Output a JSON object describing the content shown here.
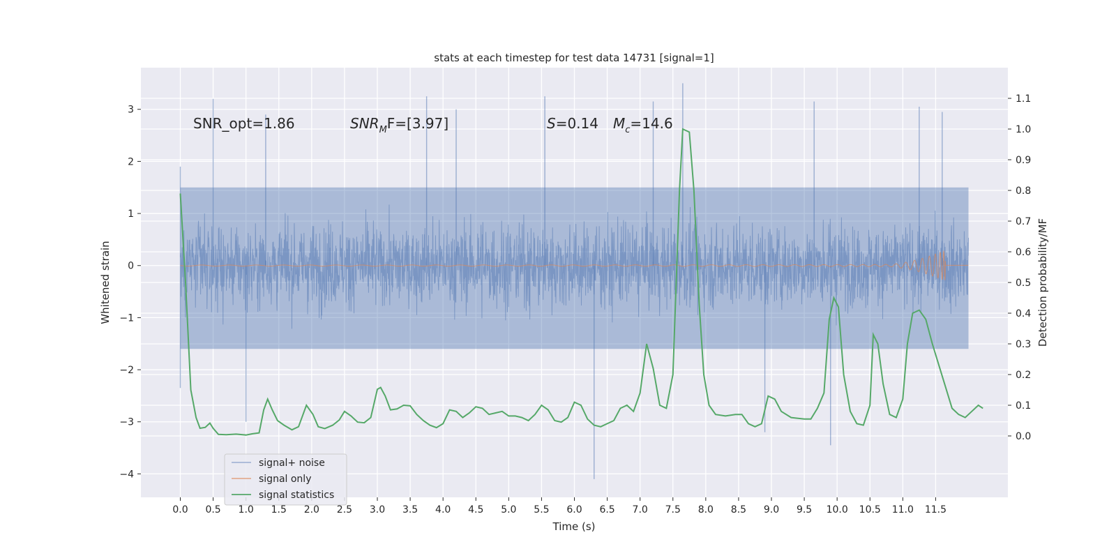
{
  "chart_data": {
    "type": "line",
    "title": "stats at each timestep for test data 14731 [signal=1]",
    "xlabel": "Time (s)",
    "ylabel": "Whitened strain",
    "y2label": "Detection probability/MF",
    "xlim": [
      -0.6,
      12.6
    ],
    "ylim": [
      -4.45,
      3.8
    ],
    "y2lim": [
      -0.2,
      1.2
    ],
    "xticks": [
      0.0,
      0.5,
      1.0,
      1.5,
      2.0,
      2.5,
      3.0,
      3.5,
      4.0,
      4.5,
      5.0,
      5.5,
      6.0,
      6.5,
      7.0,
      7.5,
      8.0,
      8.5,
      9.0,
      9.5,
      10.0,
      10.5,
      11.0,
      11.5
    ],
    "xtick_labels": [
      "0.0",
      "0.5",
      "1.0",
      "1.5",
      "2.0",
      "2.5",
      "3.0",
      "3.5",
      "4.0",
      "4.5",
      "5.0",
      "5.5",
      "6.0",
      "6.5",
      "7.0",
      "7.5",
      "8.0",
      "8.5",
      "9.0",
      "9.5",
      "10.0",
      "10.5",
      "11.0",
      "11.5"
    ],
    "yticks": [
      -4,
      -3,
      -2,
      -1,
      0,
      1,
      2,
      3
    ],
    "ytick_labels": [
      "−4",
      "−3",
      "−2",
      "−1",
      "0",
      "1",
      "2",
      "3"
    ],
    "y2ticks": [
      0.0,
      0.1,
      0.2,
      0.3,
      0.4,
      0.5,
      0.6,
      0.7,
      0.8,
      0.9,
      1.0,
      1.1
    ],
    "y2tick_labels": [
      "0.0",
      "0.1",
      "0.2",
      "0.3",
      "0.4",
      "0.5",
      "0.6",
      "0.7",
      "0.8",
      "0.9",
      "1.0",
      "1.1"
    ],
    "grid": true,
    "legend_position": "lower-left",
    "annotations": [
      {
        "key": "snr_opt",
        "text": "SNR_opt=1.86",
        "x": 0.2,
        "y": 2.65
      },
      {
        "key": "snr_mf",
        "text": "SNR_MF=[3.97]",
        "x": 2.6,
        "y": 2.65
      },
      {
        "key": "s",
        "text": "S=0.14",
        "x": 5.6,
        "y": 2.65
      },
      {
        "key": "mc",
        "text": "Mc=14.6",
        "x": 6.6,
        "y": 2.65
      }
    ],
    "series": [
      {
        "name": "signal+ noise",
        "axis": "left",
        "color": "#4c72b0",
        "opacity": 0.5,
        "x_range": [
          0.0,
          12.0
        ],
        "envelope_typical": [
          -1.6,
          1.5
        ],
        "extremes": [
          {
            "x": 0.0,
            "y": -2.35
          },
          {
            "x": 0.0,
            "y": 1.9
          },
          {
            "x": 0.5,
            "y": 3.2
          },
          {
            "x": 1.3,
            "y": 2.9
          },
          {
            "x": 1.0,
            "y": -3.0
          },
          {
            "x": 3.75,
            "y": 3.25
          },
          {
            "x": 4.2,
            "y": 3.0
          },
          {
            "x": 5.55,
            "y": 3.25
          },
          {
            "x": 6.3,
            "y": -4.1
          },
          {
            "x": 7.2,
            "y": 3.15
          },
          {
            "x": 7.65,
            "y": 3.5
          },
          {
            "x": 8.9,
            "y": -3.2
          },
          {
            "x": 9.65,
            "y": 3.15
          },
          {
            "x": 9.9,
            "y": -3.45
          },
          {
            "x": 11.25,
            "y": 3.05
          },
          {
            "x": 11.6,
            "y": 2.95
          }
        ]
      },
      {
        "name": "signal only",
        "axis": "left",
        "color": "#dd8452",
        "opacity": 0.7,
        "x_range": [
          0.0,
          12.0
        ],
        "chirp_peak": {
          "x": 11.65,
          "amplitude": 0.3
        }
      },
      {
        "name": "signal statistics",
        "axis": "right",
        "color": "#55a868",
        "points": [
          [
            0.0,
            0.79
          ],
          [
            0.08,
            0.5
          ],
          [
            0.16,
            0.15
          ],
          [
            0.24,
            0.06
          ],
          [
            0.3,
            0.025
          ],
          [
            0.38,
            0.028
          ],
          [
            0.45,
            0.042
          ],
          [
            0.5,
            0.025
          ],
          [
            0.58,
            0.005
          ],
          [
            0.7,
            0.004
          ],
          [
            0.85,
            0.006
          ],
          [
            1.0,
            0.003
          ],
          [
            1.1,
            0.007
          ],
          [
            1.2,
            0.01
          ],
          [
            1.27,
            0.085
          ],
          [
            1.33,
            0.12
          ],
          [
            1.4,
            0.085
          ],
          [
            1.48,
            0.05
          ],
          [
            1.58,
            0.035
          ],
          [
            1.7,
            0.02
          ],
          [
            1.8,
            0.03
          ],
          [
            1.92,
            0.1
          ],
          [
            2.02,
            0.07
          ],
          [
            2.1,
            0.03
          ],
          [
            2.2,
            0.024
          ],
          [
            2.32,
            0.035
          ],
          [
            2.42,
            0.052
          ],
          [
            2.5,
            0.08
          ],
          [
            2.6,
            0.065
          ],
          [
            2.7,
            0.045
          ],
          [
            2.8,
            0.043
          ],
          [
            2.9,
            0.06
          ],
          [
            3.0,
            0.152
          ],
          [
            3.05,
            0.158
          ],
          [
            3.12,
            0.13
          ],
          [
            3.2,
            0.085
          ],
          [
            3.3,
            0.088
          ],
          [
            3.4,
            0.1
          ],
          [
            3.5,
            0.098
          ],
          [
            3.6,
            0.07
          ],
          [
            3.7,
            0.05
          ],
          [
            3.8,
            0.035
          ],
          [
            3.9,
            0.027
          ],
          [
            4.0,
            0.04
          ],
          [
            4.1,
            0.085
          ],
          [
            4.2,
            0.08
          ],
          [
            4.3,
            0.06
          ],
          [
            4.4,
            0.075
          ],
          [
            4.5,
            0.095
          ],
          [
            4.6,
            0.09
          ],
          [
            4.7,
            0.07
          ],
          [
            4.8,
            0.075
          ],
          [
            4.9,
            0.08
          ],
          [
            5.0,
            0.065
          ],
          [
            5.1,
            0.065
          ],
          [
            5.2,
            0.06
          ],
          [
            5.3,
            0.05
          ],
          [
            5.4,
            0.07
          ],
          [
            5.5,
            0.1
          ],
          [
            5.6,
            0.085
          ],
          [
            5.7,
            0.05
          ],
          [
            5.8,
            0.045
          ],
          [
            5.9,
            0.06
          ],
          [
            6.0,
            0.11
          ],
          [
            6.1,
            0.1
          ],
          [
            6.2,
            0.055
          ],
          [
            6.3,
            0.035
          ],
          [
            6.4,
            0.03
          ],
          [
            6.5,
            0.04
          ],
          [
            6.6,
            0.05
          ],
          [
            6.7,
            0.09
          ],
          [
            6.8,
            0.1
          ],
          [
            6.9,
            0.08
          ],
          [
            7.0,
            0.14
          ],
          [
            7.1,
            0.3
          ],
          [
            7.2,
            0.22
          ],
          [
            7.3,
            0.1
          ],
          [
            7.4,
            0.09
          ],
          [
            7.5,
            0.2
          ],
          [
            7.6,
            0.8
          ],
          [
            7.65,
            1.0
          ],
          [
            7.75,
            0.99
          ],
          [
            7.82,
            0.8
          ],
          [
            7.9,
            0.43
          ],
          [
            7.97,
            0.2
          ],
          [
            8.05,
            0.1
          ],
          [
            8.15,
            0.07
          ],
          [
            8.3,
            0.065
          ],
          [
            8.45,
            0.07
          ],
          [
            8.55,
            0.07
          ],
          [
            8.65,
            0.04
          ],
          [
            8.75,
            0.03
          ],
          [
            8.85,
            0.04
          ],
          [
            8.95,
            0.13
          ],
          [
            9.05,
            0.12
          ],
          [
            9.15,
            0.08
          ],
          [
            9.3,
            0.06
          ],
          [
            9.5,
            0.055
          ],
          [
            9.6,
            0.055
          ],
          [
            9.7,
            0.09
          ],
          [
            9.8,
            0.14
          ],
          [
            9.88,
            0.38
          ],
          [
            9.95,
            0.45
          ],
          [
            10.02,
            0.42
          ],
          [
            10.1,
            0.2
          ],
          [
            10.2,
            0.08
          ],
          [
            10.3,
            0.04
          ],
          [
            10.4,
            0.035
          ],
          [
            10.5,
            0.1
          ],
          [
            10.55,
            0.33
          ],
          [
            10.62,
            0.3
          ],
          [
            10.7,
            0.17
          ],
          [
            10.8,
            0.07
          ],
          [
            10.9,
            0.06
          ],
          [
            11.0,
            0.12
          ],
          [
            11.07,
            0.3
          ],
          [
            11.15,
            0.4
          ],
          [
            11.25,
            0.41
          ],
          [
            11.35,
            0.38
          ],
          [
            11.45,
            0.3
          ],
          [
            11.55,
            0.23
          ],
          [
            11.65,
            0.16
          ],
          [
            11.75,
            0.09
          ],
          [
            11.85,
            0.07
          ],
          [
            11.95,
            0.06
          ],
          [
            12.05,
            0.08
          ],
          [
            12.15,
            0.1
          ],
          [
            12.22,
            0.09
          ]
        ]
      }
    ]
  }
}
